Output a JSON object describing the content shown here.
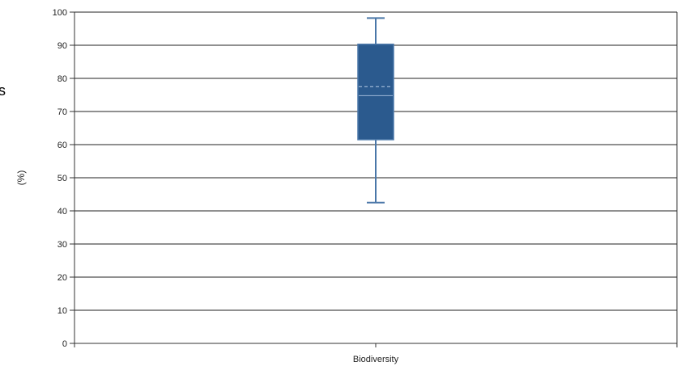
{
  "chart_data": {
    "type": "box",
    "title": "",
    "xlabel": "",
    "ylabel": "(%)",
    "ylim": [
      0,
      100
    ],
    "yticks": [
      0,
      10,
      20,
      30,
      40,
      50,
      60,
      70,
      80,
      90,
      100
    ],
    "categories": [
      "Biodiversity"
    ],
    "boxes": [
      {
        "category": "Biodiversity",
        "min": 42.5,
        "q1": 61.5,
        "median": 74.8,
        "mean": 77.5,
        "q3": 90.3,
        "max": 98.2
      }
    ],
    "grid": true,
    "colors": {
      "box_fill": "#2b5a8e",
      "whisker": "#4a77a8",
      "median_line": "#9db7d8",
      "mean_line": "#b9cde6",
      "grid": "#222222",
      "axis": "#333333"
    }
  },
  "fragments": {
    "left_edge_glyph": "s"
  }
}
